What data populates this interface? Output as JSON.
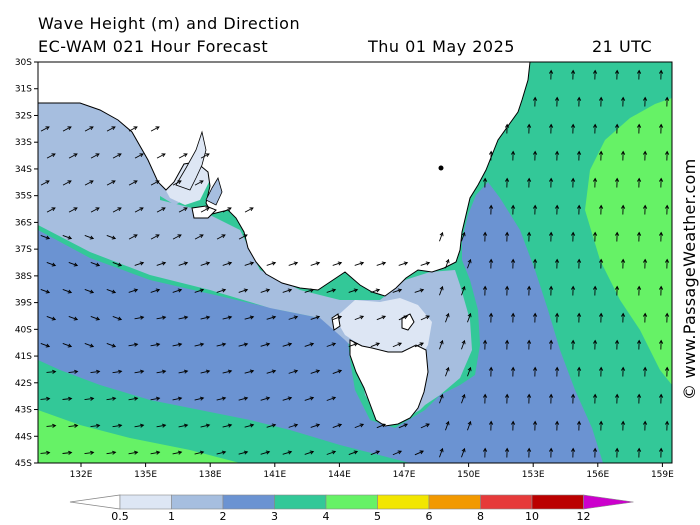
{
  "header": {
    "title": "Wave Height (m) and Direction",
    "model": "EC-WAM 021 Hour Forecast",
    "date": "Thu 01 May 2025",
    "time": "21 UTC"
  },
  "credit": "© www.PassageWeather.com",
  "axes": {
    "lat_labels": [
      "30S",
      "31S",
      "32S",
      "33S",
      "34S",
      "35S",
      "36S",
      "37S",
      "38S",
      "39S",
      "40S",
      "41S",
      "42S",
      "43S",
      "44S",
      "45S"
    ],
    "lon_labels": [
      "132E",
      "135E",
      "138E",
      "141E",
      "144E",
      "147E",
      "150E",
      "153E",
      "156E",
      "159E"
    ]
  },
  "colorbar": {
    "labels": [
      "0.5",
      "1",
      "2",
      "3",
      "4",
      "5",
      "6",
      "8",
      "10",
      "12"
    ],
    "colors": [
      "#dde6f4",
      "#a6bedf",
      "#6b93d2",
      "#33c898",
      "#66f266",
      "#f2e600",
      "#f29900",
      "#e63a3a",
      "#bb0000",
      "#cc00cc"
    ]
  },
  "palette": {
    "land": "#ffffff",
    "h0_5": "#dde6f4",
    "h1": "#a6bedf",
    "h2": "#6b93d2",
    "h3": "#33c898",
    "h4": "#66f266"
  }
}
